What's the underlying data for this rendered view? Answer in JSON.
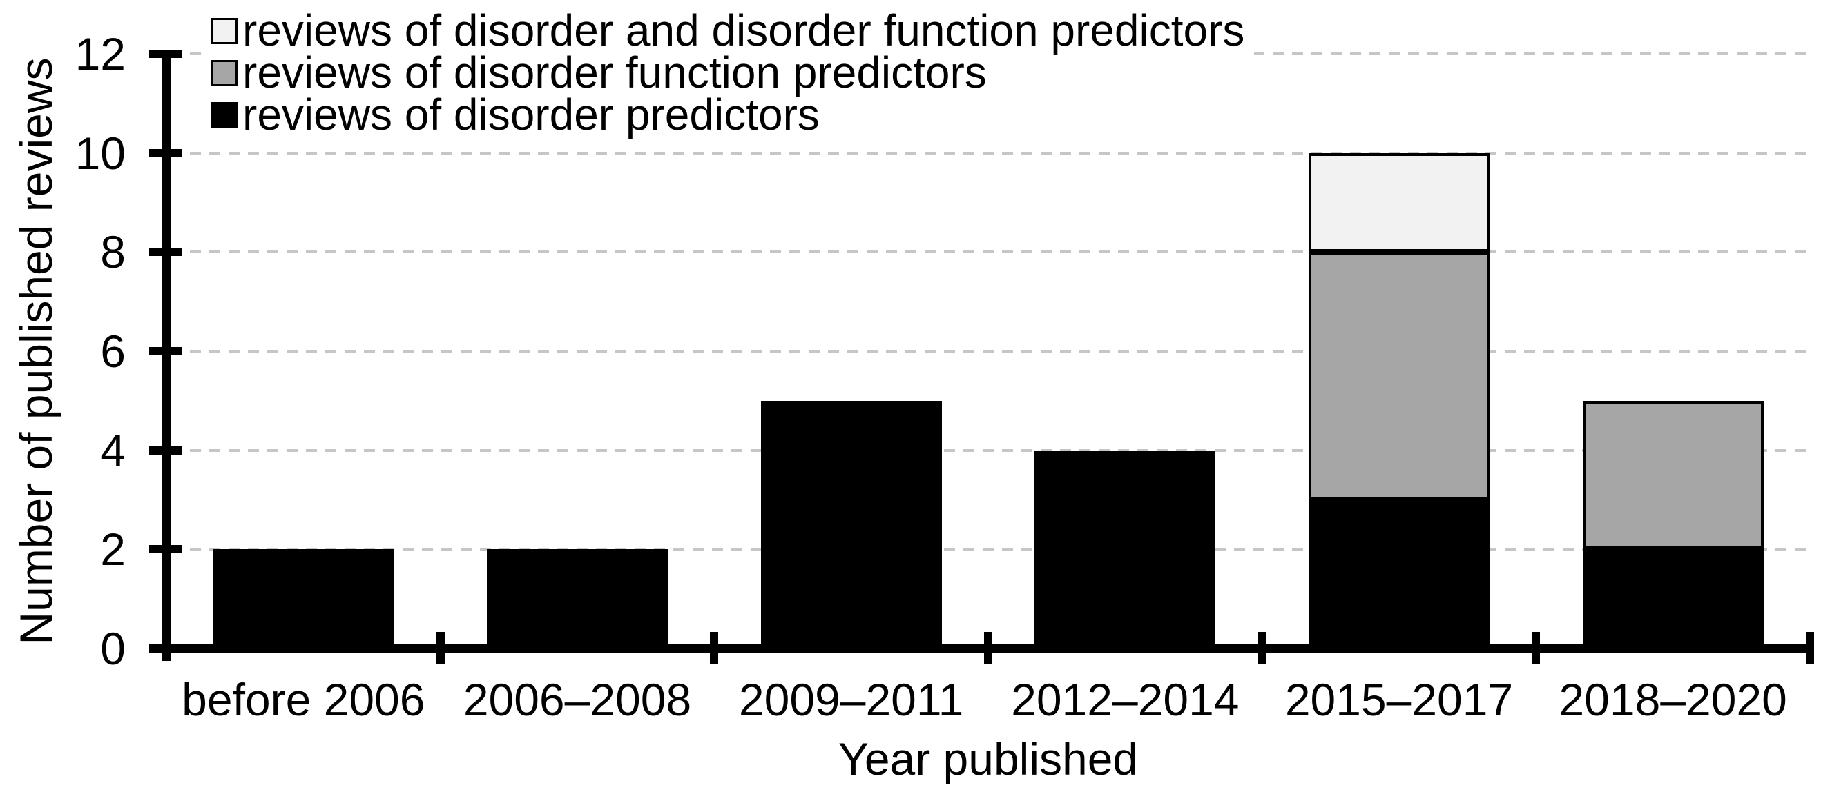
{
  "chart_data": {
    "type": "bar",
    "stacked": true,
    "title": "",
    "xlabel": "Year published",
    "ylabel": "Number of published reviews",
    "categories": [
      "before 2006",
      "2006–2008",
      "2009–2011",
      "2012–2014",
      "2015–2017",
      "2018–2020"
    ],
    "series": [
      {
        "name": "reviews of disorder predictors",
        "color": "#000000",
        "values": [
          2,
          2,
          5,
          4,
          3,
          2
        ]
      },
      {
        "name": "reviews of disorder function predictors",
        "color": "#a6a6a6",
        "values": [
          0,
          0,
          0,
          0,
          5,
          3
        ]
      },
      {
        "name": "reviews of disorder and disorder function predictors",
        "color": "#f2f2f2",
        "values": [
          0,
          0,
          0,
          0,
          2,
          0
        ]
      }
    ],
    "totals": [
      2,
      2,
      5,
      4,
      10,
      5
    ],
    "ylim": [
      0,
      12
    ],
    "yticks": [
      0,
      2,
      4,
      6,
      8,
      10,
      12
    ],
    "grid": "horizontal-dashed",
    "legend_position": "top-left",
    "legend_order": [
      "reviews of disorder and disorder function predictors",
      "reviews of disorder function predictors",
      "reviews of disorder predictors"
    ]
  },
  "colors": {
    "background": "#ffffff",
    "text": "#000000",
    "axis": "#000000",
    "gridline": "#c6c6c6",
    "bar_black": "#000000",
    "bar_gray": "#a6a6a6",
    "bar_light": "#f2f2f2"
  }
}
